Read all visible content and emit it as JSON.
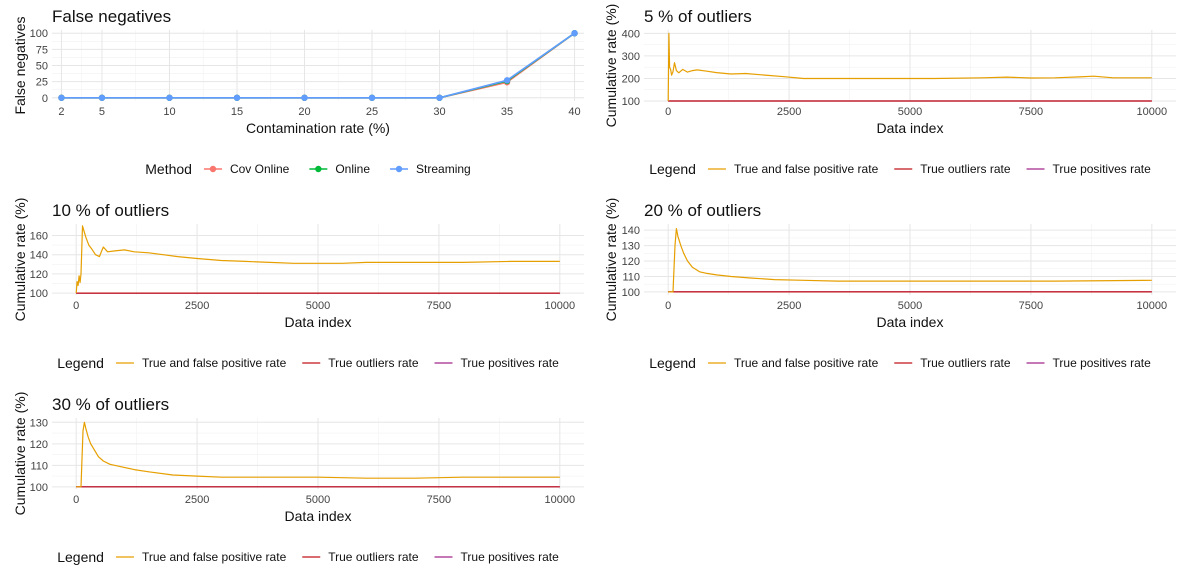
{
  "chart_data": [
    {
      "type": "line",
      "title": "False negatives",
      "xlabel": "Contamination rate (%)",
      "ylabel": "False negatives",
      "x": [
        2,
        5,
        10,
        15,
        20,
        25,
        30,
        35,
        40
      ],
      "xticks": [
        2,
        5,
        10,
        15,
        20,
        25,
        30,
        35,
        40
      ],
      "yticks": [
        0,
        25,
        50,
        75,
        100
      ],
      "xlim": [
        1.3,
        40.7
      ],
      "ylim": [
        -5,
        105
      ],
      "markers": true,
      "series": [
        {
          "name": "Cov Online",
          "color": "#F8766D",
          "values": [
            0,
            0,
            0,
            0,
            0,
            0,
            0,
            24,
            100
          ]
        },
        {
          "name": "Online",
          "color": "#00BA38",
          "values": [
            0,
            0,
            0,
            0,
            0,
            0,
            0,
            26,
            100
          ]
        },
        {
          "name": "Streaming",
          "color": "#619CFF",
          "values": [
            0,
            0,
            0,
            0,
            0,
            0,
            0,
            27,
            100
          ]
        }
      ],
      "legend": {
        "title": "Method",
        "position": "bottom",
        "keys": [
          "Cov Online",
          "Online",
          "Streaming"
        ]
      },
      "grid": true
    },
    {
      "type": "line",
      "title": "5 % of outliers",
      "xlabel": "Data index",
      "ylabel": "Cumulative rate (%)",
      "xticks": [
        0,
        2500,
        5000,
        7500,
        10000
      ],
      "yticks": [
        100,
        200,
        300,
        400
      ],
      "xlim": [
        -500,
        10500
      ],
      "ylim": [
        100,
        415
      ],
      "series": [
        {
          "name": "True and false positive rate",
          "color": "#E69F00",
          "x": [
            0,
            15,
            30,
            50,
            70,
            100,
            130,
            170,
            220,
            300,
            400,
            500,
            600,
            800,
            1000,
            1300,
            1600,
            2000,
            2400,
            2800,
            3500,
            4500,
            5500,
            6500,
            7000,
            7500,
            8000,
            8500,
            8800,
            9200,
            10000
          ],
          "values": [
            100,
            400,
            250,
            240,
            215,
            230,
            270,
            235,
            225,
            240,
            228,
            235,
            238,
            232,
            226,
            220,
            222,
            215,
            208,
            200,
            200,
            200,
            200,
            203,
            206,
            202,
            203,
            207,
            210,
            203,
            203
          ]
        },
        {
          "name": "True outliers rate",
          "color": "#C0141A",
          "x": [
            0,
            10000
          ],
          "values": [
            100,
            100
          ]
        },
        {
          "name": "True positives rate",
          "color": "#A3288B",
          "x": [
            0,
            10000
          ],
          "values": [
            100,
            100
          ]
        }
      ],
      "legend": {
        "title": "Legend",
        "position": "bottom",
        "keys": [
          "True and false positive rate",
          "True outliers rate",
          "True positives rate"
        ]
      },
      "grid": true
    },
    {
      "type": "line",
      "title": "10 % of outliers",
      "xlabel": "Data index",
      "ylabel": "Cumulative rate (%)",
      "xticks": [
        0,
        2500,
        5000,
        7500,
        10000
      ],
      "yticks": [
        100,
        120,
        140,
        160
      ],
      "xlim": [
        -500,
        10500
      ],
      "ylim": [
        98,
        172
      ],
      "series": [
        {
          "name": "True and false positive rate",
          "color": "#E69F00",
          "x": [
            0,
            20,
            40,
            60,
            80,
            100,
            130,
            160,
            200,
            260,
            320,
            400,
            480,
            560,
            650,
            800,
            1000,
            1200,
            1500,
            1800,
            2100,
            2500,
            3000,
            3500,
            4000,
            4500,
            5000,
            5500,
            6000,
            6500,
            7000,
            8000,
            9000,
            10000
          ],
          "values": [
            100,
            112,
            108,
            118,
            111,
            120,
            170,
            165,
            158,
            150,
            146,
            140,
            138,
            148,
            143,
            144,
            145,
            143,
            142,
            140,
            138,
            136,
            134,
            133,
            132,
            131,
            131,
            131,
            132,
            132,
            132,
            132,
            133,
            133
          ]
        },
        {
          "name": "True outliers rate",
          "color": "#C0141A",
          "x": [
            0,
            10000
          ],
          "values": [
            100,
            100
          ]
        },
        {
          "name": "True positives rate",
          "color": "#A3288B",
          "x": [
            0,
            10000
          ],
          "values": [
            100,
            100
          ]
        }
      ],
      "legend": {
        "title": "Legend",
        "position": "bottom",
        "keys": [
          "True and false positive rate",
          "True outliers rate",
          "True positives rate"
        ]
      },
      "grid": true
    },
    {
      "type": "line",
      "title": "20 % of outliers",
      "xlabel": "Data index",
      "ylabel": "Cumulative rate (%)",
      "xticks": [
        0,
        2500,
        5000,
        7500,
        10000
      ],
      "yticks": [
        100,
        110,
        120,
        130,
        140
      ],
      "xlim": [
        -500,
        10500
      ],
      "ylim": [
        98,
        144
      ],
      "series": [
        {
          "name": "True and false positive rate",
          "color": "#E69F00",
          "x": [
            0,
            100,
            140,
            170,
            200,
            260,
            320,
            400,
            500,
            650,
            800,
            1000,
            1300,
            1700,
            2200,
            2800,
            3500,
            4500,
            6000,
            8000,
            10000
          ],
          "values": [
            100,
            100,
            130,
            141,
            136,
            130,
            125,
            120,
            116,
            113,
            112,
            111,
            110,
            109,
            108,
            107.5,
            107,
            107,
            107,
            107,
            107.5
          ]
        },
        {
          "name": "True outliers rate",
          "color": "#C0141A",
          "x": [
            0,
            10000
          ],
          "values": [
            100,
            100
          ]
        },
        {
          "name": "True positives rate",
          "color": "#A3288B",
          "x": [
            0,
            10000
          ],
          "values": [
            100,
            100
          ]
        }
      ],
      "legend": {
        "title": "Legend",
        "position": "bottom",
        "keys": [
          "True and false positive rate",
          "True outliers rate",
          "True positives rate"
        ]
      },
      "grid": true
    },
    {
      "type": "line",
      "title": "30 % of outliers",
      "xlabel": "Data index",
      "ylabel": "Cumulative rate (%)",
      "xticks": [
        0,
        2500,
        5000,
        7500,
        10000
      ],
      "yticks": [
        100,
        110,
        120,
        130
      ],
      "xlim": [
        -500,
        10500
      ],
      "ylim": [
        99,
        132
      ],
      "series": [
        {
          "name": "True and false positive rate",
          "color": "#E69F00",
          "x": [
            0,
            100,
            140,
            170,
            200,
            250,
            300,
            380,
            460,
            560,
            700,
            900,
            1200,
            1500,
            2000,
            2500,
            3000,
            4000,
            5000,
            6000,
            7000,
            8000,
            9000,
            10000
          ],
          "values": [
            100,
            100,
            126,
            130,
            127,
            123,
            120,
            117,
            114,
            112,
            110.5,
            109.5,
            108,
            107,
            105.5,
            105,
            104.5,
            104.5,
            104.5,
            104,
            104,
            104.5,
            104.5,
            104.5
          ]
        },
        {
          "name": "True outliers rate",
          "color": "#C0141A",
          "x": [
            0,
            10000
          ],
          "values": [
            100,
            100
          ]
        },
        {
          "name": "True positives rate",
          "color": "#A3288B",
          "x": [
            0,
            10000
          ],
          "values": [
            100,
            100
          ]
        }
      ],
      "legend": {
        "title": "Legend",
        "position": "bottom",
        "keys": [
          "True and false positive rate",
          "True outliers rate",
          "True positives rate"
        ]
      },
      "grid": true
    }
  ]
}
